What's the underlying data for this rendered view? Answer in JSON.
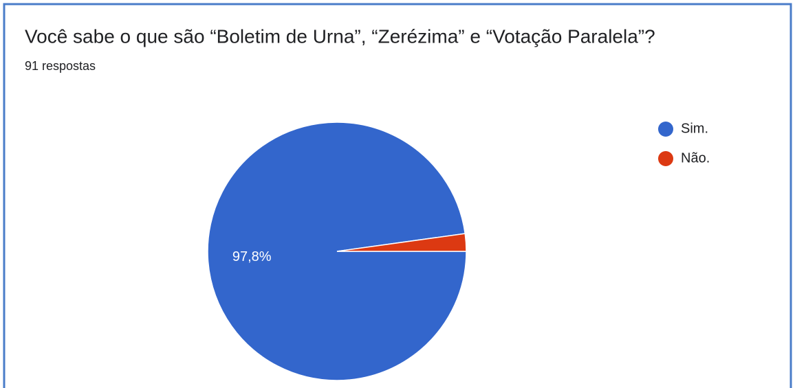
{
  "chart_data": {
    "type": "pie",
    "title": "Você sabe o que são “Boletim de Urna”, “Zerézima” e “Votação Paralela”?",
    "subtitle": "91 respostas",
    "categories": [
      "Sim.",
      "Não."
    ],
    "values": [
      97.8,
      2.2
    ],
    "value_labels": [
      "97,8%",
      null
    ],
    "colors": [
      "#3366cc",
      "#dc3912"
    ],
    "legend": "right"
  }
}
